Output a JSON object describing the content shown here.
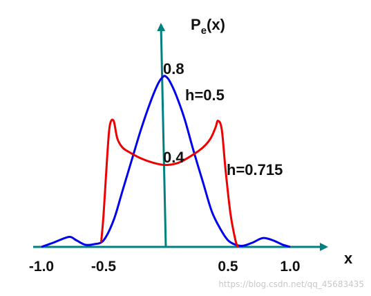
{
  "chart_data": {
    "type": "line",
    "title": "",
    "xlabel": "x",
    "ylabel": "Pₑ(x)",
    "ylabel_main": "P",
    "ylabel_sub": "e",
    "ylabel_arg": "(x)",
    "xlim": [
      -1.0,
      1.0
    ],
    "ylim": [
      0,
      0.8
    ],
    "grid": false,
    "legend": "none",
    "x_tick_labels": [
      {
        "value": -1.0,
        "label": "-1.0"
      },
      {
        "value": -0.5,
        "label": "-0.5"
      },
      {
        "value": 0.5,
        "label": "0.5"
      },
      {
        "value": 1.0,
        "label": "1.0"
      }
    ],
    "y_annotations": [
      {
        "value": 0.8,
        "label": "0.8"
      },
      {
        "value": 0.4,
        "label": "0.4"
      }
    ],
    "series": [
      {
        "label": "h=0.5",
        "color": "#0000ee",
        "points": [
          [
            -1.0,
            0.0
          ],
          [
            -0.9,
            0.02
          ],
          [
            -0.78,
            0.045
          ],
          [
            -0.72,
            0.03
          ],
          [
            -0.65,
            0.01
          ],
          [
            -0.58,
            0.012
          ],
          [
            -0.5,
            0.03
          ],
          [
            -0.42,
            0.12
          ],
          [
            -0.35,
            0.25
          ],
          [
            -0.27,
            0.4
          ],
          [
            -0.2,
            0.53
          ],
          [
            -0.12,
            0.66
          ],
          [
            -0.06,
            0.74
          ],
          [
            -0.02,
            0.77
          ],
          [
            0.0,
            0.77
          ],
          [
            0.03,
            0.75
          ],
          [
            0.08,
            0.69
          ],
          [
            0.15,
            0.58
          ],
          [
            0.22,
            0.44
          ],
          [
            0.3,
            0.29
          ],
          [
            0.37,
            0.16
          ],
          [
            0.44,
            0.08
          ],
          [
            0.5,
            0.03
          ],
          [
            0.56,
            0.01
          ],
          [
            0.62,
            0.005
          ],
          [
            0.7,
            0.02
          ],
          [
            0.78,
            0.04
          ],
          [
            0.86,
            0.03
          ],
          [
            0.94,
            0.01
          ],
          [
            1.0,
            0.0
          ]
        ]
      },
      {
        "label": "h=0.715",
        "color": "#ee0000",
        "points": [
          [
            -0.52,
            0.02
          ],
          [
            -0.5,
            0.15
          ],
          [
            -0.47,
            0.42
          ],
          [
            -0.45,
            0.55
          ],
          [
            -0.42,
            0.57
          ],
          [
            -0.39,
            0.49
          ],
          [
            -0.35,
            0.45
          ],
          [
            -0.3,
            0.43
          ],
          [
            -0.2,
            0.4
          ],
          [
            -0.1,
            0.38
          ],
          [
            0.0,
            0.37
          ],
          [
            0.1,
            0.38
          ],
          [
            0.2,
            0.41
          ],
          [
            0.3,
            0.45
          ],
          [
            0.36,
            0.49
          ],
          [
            0.4,
            0.54
          ],
          [
            0.42,
            0.57
          ],
          [
            0.45,
            0.53
          ],
          [
            0.48,
            0.35
          ],
          [
            0.52,
            0.15
          ],
          [
            0.56,
            0.03
          ],
          [
            0.58,
            0.0
          ]
        ]
      }
    ],
    "axis_color": "#008080",
    "watermark": "https://blog.csdn.net/qq_45683435"
  }
}
